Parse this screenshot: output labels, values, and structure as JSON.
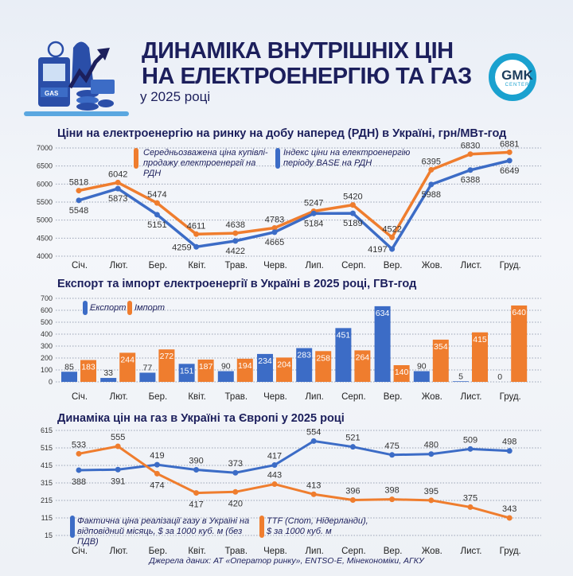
{
  "header": {
    "title_line1": "ДИНАМІКА ВНУТРІШНІХ ЦІН",
    "title_line2": "НА ЕЛЕКТРОЕНЕРГІЮ ТА ГАЗ",
    "subtitle": "у 2025 році",
    "illustration_text": "GAS",
    "logo_main": "GMK",
    "logo_sub": "CENTER"
  },
  "colors": {
    "orange": "#ef7d2e",
    "blue": "#3c6cc6",
    "navy": "#1c1f5c"
  },
  "chart_data": [
    {
      "type": "line",
      "title": "Ціни на електроенергію на ринку на добу наперед (РДН) в Україні, грн/МВт-год",
      "categories": [
        "Січ.",
        "Лют.",
        "Бер.",
        "Квіт.",
        "Трав.",
        "Черв.",
        "Лип.",
        "Серп.",
        "Вер.",
        "Жов.",
        "Лист.",
        "Груд."
      ],
      "yticks": [
        4000,
        4500,
        5000,
        5500,
        6000,
        6500,
        7000
      ],
      "ylim": [
        4000,
        7000
      ],
      "grid": true,
      "series": [
        {
          "name": "Середньозважена ціна купівлі-продажу електроенергії на РДН",
          "color": "#ef7d2e",
          "values": [
            5818,
            6042,
            5474,
            4611,
            4638,
            4783,
            5247,
            5420,
            4522,
            6395,
            6830,
            6881
          ]
        },
        {
          "name": "Індекс ціни на електроенергію періоду BASE на РДН",
          "color": "#3c6cc6",
          "values": [
            5548,
            5873,
            5151,
            4259,
            4422,
            4665,
            5184,
            5189,
            4197,
            5988,
            6388,
            6649
          ]
        }
      ]
    },
    {
      "type": "bar",
      "title": "Експорт та імпорт електроенергії в Україні в 2025 році, ГВт-год",
      "categories": [
        "Січ.",
        "Лют.",
        "Бер.",
        "Квіт.",
        "Трав.",
        "Черв.",
        "Лип.",
        "Серп.",
        "Вер.",
        "Жов.",
        "Лист.",
        "Груд."
      ],
      "yticks": [
        0,
        100,
        200,
        300,
        400,
        500,
        600,
        700
      ],
      "ylim": [
        0,
        700
      ],
      "grid": true,
      "series": [
        {
          "name": "Експорт",
          "color": "#3c6cc6",
          "values": [
            85,
            33,
            77,
            151,
            90,
            234,
            283,
            451,
            634,
            90,
            5,
            0
          ]
        },
        {
          "name": "Імпорт",
          "color": "#ef7d2e",
          "values": [
            183,
            244,
            272,
            187,
            194,
            204,
            258,
            264,
            140,
            354,
            415,
            640
          ]
        }
      ]
    },
    {
      "type": "line",
      "title": "Динаміка цін на газ в Україні та Європі у 2025 році",
      "categories": [
        "Січ.",
        "Лют.",
        "Бер.",
        "Квіт.",
        "Трав.",
        "Черв.",
        "Лип.",
        "Серп.",
        "Вер.",
        "Жов.",
        "Лист.",
        "Груд."
      ],
      "yticks": [
        15,
        115,
        215,
        315,
        415,
        515,
        615
      ],
      "ylim": [
        15,
        615
      ],
      "grid": true,
      "series": [
        {
          "name": "Фактична ціна реалізації газу в Україні на відповідний місяць, $ за 1000 куб. м (без ПДВ)",
          "color": "#3c6cc6",
          "values": [
            388,
            391,
            419,
            390,
            373,
            417,
            554,
            521,
            475,
            480,
            509,
            498
          ]
        },
        {
          "name": "TTF (Спот, Нідерланди), $ за 1000 куб. м",
          "color": "#ef7d2e",
          "values": [
            533,
            555,
            474,
            417,
            420,
            443,
            413,
            396,
            398,
            395,
            375,
            343
          ]
        }
      ]
    }
  ],
  "source": "Джерела даних:  АТ «Оператор ринку», ENTSO-E, Мінекономіки, АГКУ"
}
